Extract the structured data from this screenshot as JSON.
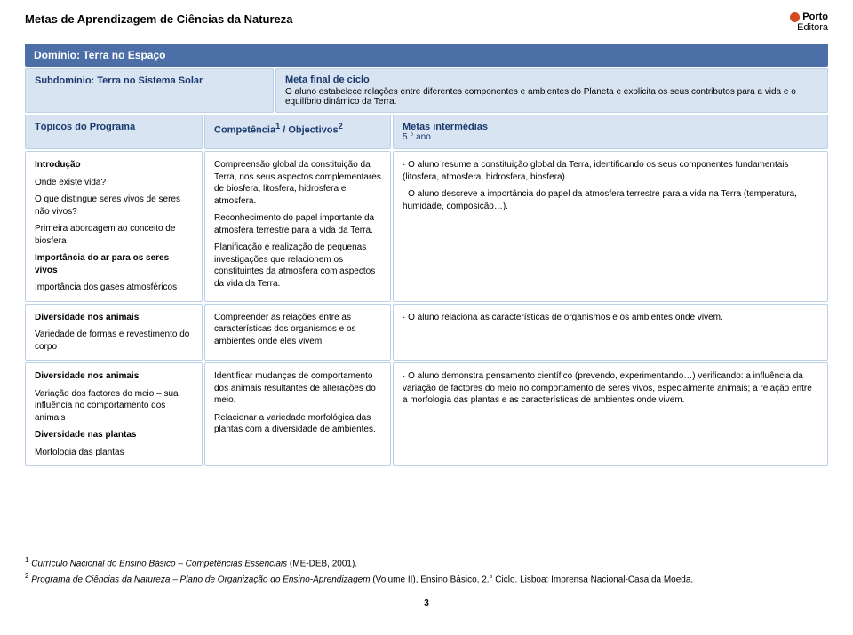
{
  "doc_title": "Metas de Aprendizagem de Ciências da Natureza",
  "brand_top": "Porto",
  "brand_bottom": "Editora",
  "domain_label": "Domínio: Terra no Espaço",
  "subdomain_label": "Subdomínio: Terra no Sistema Solar",
  "meta_final_title": "Meta final de ciclo",
  "meta_final_text": "O aluno estabelece relações entre diferentes componentes e ambientes do Planeta e explicita os seus contributos para a vida e o equilíbrio dinâmico da Terra.",
  "headers": {
    "col1": "Tópicos do Programa",
    "col2_prefix": "Competência",
    "col2_sup1": "1",
    "col2_mid": " / Objectivos",
    "col2_sup2": "2",
    "col3_line1": "Metas intermédias",
    "col3_line2": "5.° ano"
  },
  "rows": [
    {
      "c1": [
        {
          "bold": true,
          "text": "Introdução"
        },
        {
          "text": "Onde existe vida?"
        },
        {
          "text": "O que distingue seres vivos de seres não vivos?"
        },
        {
          "text": "Primeira abordagem ao conceito de biosfera"
        },
        {
          "bold": true,
          "text": "Importância do ar para os seres vivos"
        },
        {
          "text": "Importância dos gases atmosféricos"
        }
      ],
      "c2": [
        {
          "text": "Compreensão global da constituição da Terra, nos seus aspectos complementares de biosfera, litosfera, hidrosfera e atmosfera."
        },
        {
          "text": "Reconhecimento do papel importante da atmosfera terrestre para a vida da Terra."
        },
        {
          "text": "Planificação e realização de pequenas investigações que relacionem os constituintes da atmosfera com aspectos da vida da Terra."
        }
      ],
      "c3": [
        {
          "bullet": true,
          "text": "O aluno resume a constituição global da Terra, identificando os seus componentes fundamentais (litosfera, atmosfera, hidrosfera, biosfera)."
        },
        {
          "bullet": true,
          "text": "O aluno descreve a importância do papel da atmosfera terrestre para a vida na Terra (temperatura, humidade, composição…)."
        }
      ]
    },
    {
      "c1": [
        {
          "bold": true,
          "text": "Diversidade nos animais"
        },
        {
          "text": "Variedade de formas e revestimento do corpo"
        }
      ],
      "c2": [
        {
          "text": "Compreender as relações entre as características dos organismos e os ambientes onde eles vivem."
        }
      ],
      "c3": [
        {
          "bullet": true,
          "text": "O aluno relaciona as características de organismos e os ambientes onde vivem."
        }
      ]
    },
    {
      "c1": [
        {
          "bold": true,
          "text": "Diversidade nos animais"
        },
        {
          "text": "Variação dos factores do meio – sua influência no comportamento dos animais"
        },
        {
          "bold": true,
          "text": "Diversidade nas plantas"
        },
        {
          "text": "Morfologia das plantas"
        }
      ],
      "c2": [
        {
          "text": "Identificar mudanças de comportamento dos animais resultantes de alterações do meio."
        },
        {
          "text": "Relacionar a variedade morfológica das plantas com a diversidade de ambientes."
        }
      ],
      "c3": [
        {
          "bullet": true,
          "text": "O aluno demonstra pensamento científico (prevendo, experimentando…) verificando: a influência da variação de factores do meio no comportamento de seres vivos, especialmente animais; a relação entre a morfologia das plantas e as características de ambientes onde vivem."
        }
      ]
    }
  ],
  "footnotes": {
    "n1_prefix": "1",
    "n1_text_a": " Currículo Nacional do Ensino Básico – Competências Essenciais",
    "n1_text_b": " (ME-DEB, 2001).",
    "n2_prefix": "2",
    "n2_text_a": " Programa de Ciências da Natureza – Plano de Organização do Ensino-Aprendizagem",
    "n2_text_b": " (Volume II), Ensino Básico, 2.° Ciclo. Lisboa: Imprensa Nacional-Casa da Moeda."
  },
  "page_number": "3"
}
